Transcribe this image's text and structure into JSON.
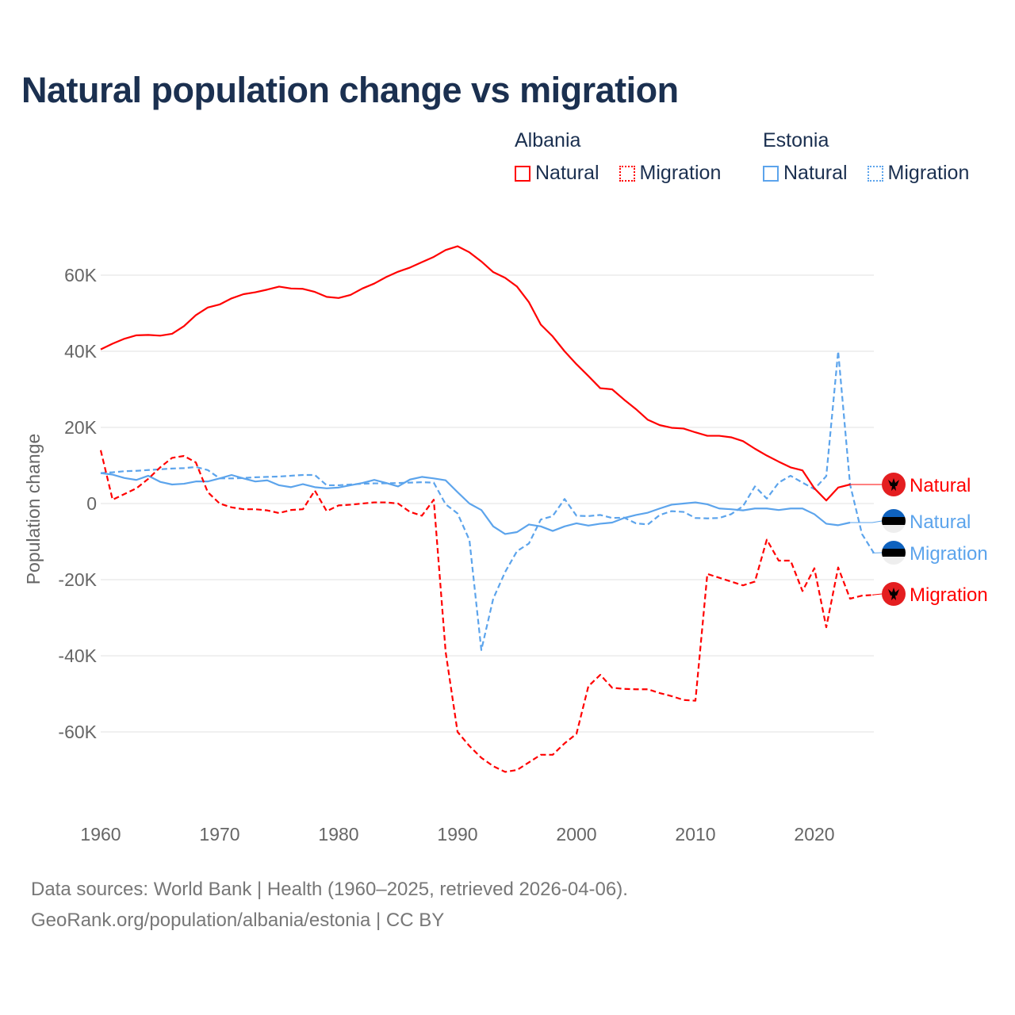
{
  "title": "Natural population change vs migration",
  "legend": {
    "groups": [
      {
        "country": "Albania",
        "items": [
          {
            "label": "Natural",
            "style": "solid"
          },
          {
            "label": "Migration",
            "style": "dotted"
          }
        ],
        "color": "#ff0000"
      },
      {
        "country": "Estonia",
        "items": [
          {
            "label": "Natural",
            "style": "solid"
          },
          {
            "label": "Migration",
            "style": "dotted"
          }
        ],
        "color": "#5ca4ec"
      }
    ]
  },
  "footer": {
    "line1": "Data sources: World Bank | Health (1960–2025, retrieved 2026-04-06).",
    "line2": "GeoRank.org/population/albania/estonia | CC BY"
  },
  "chart_data": {
    "type": "line",
    "title": "Natural population change vs migration",
    "xlabel": "",
    "ylabel": "Population change",
    "xlim": [
      1960,
      2025
    ],
    "ylim": [
      -75000,
      70000
    ],
    "grid": true,
    "legend_placement": "top-right",
    "x_ticks": [
      1960,
      1970,
      1980,
      1990,
      2000,
      2010,
      2020
    ],
    "x_tick_labels": [
      "1960",
      "1970",
      "1980",
      "1990",
      "2000",
      "2010",
      "2020"
    ],
    "y_ticks": [
      -60000,
      -40000,
      -20000,
      0,
      20000,
      40000,
      60000
    ],
    "y_tick_labels": [
      "-60K",
      "-40K",
      "-20K",
      "0",
      "20K",
      "40K",
      "60K"
    ],
    "series": [
      {
        "name": "Albania Natural",
        "end_label": "Natural",
        "color": "#ff0000",
        "dash": false,
        "start": 1960,
        "flag": "albania",
        "values": [
          40500,
          42000,
          43300,
          44200,
          44300,
          44100,
          44600,
          46600,
          49500,
          51500,
          52300,
          53900,
          55000,
          55500,
          56200,
          57000,
          56500,
          56400,
          55600,
          54300,
          54000,
          54800,
          56500,
          57800,
          59500,
          60900,
          62000,
          63400,
          64800,
          66600,
          67600,
          66000,
          63600,
          60800,
          59300,
          57000,
          52900,
          47000,
          43900,
          40000,
          36600,
          33500,
          30300,
          30000,
          27300,
          24800,
          22000,
          20600,
          19900,
          19700,
          18700,
          17800,
          17800,
          17400,
          16400,
          14400,
          12600,
          11000,
          9500,
          8700,
          4000,
          800,
          4200,
          5000
        ]
      },
      {
        "name": "Albania Migration",
        "end_label": "Migration",
        "color": "#ff0000",
        "dash": true,
        "start": 1960,
        "flag": "albania",
        "values": [
          14000,
          1000,
          2500,
          4000,
          6500,
          9500,
          12000,
          12500,
          10800,
          3000,
          0,
          -1000,
          -1500,
          -1500,
          -1800,
          -2500,
          -1700,
          -1500,
          3400,
          -2000,
          -500,
          -300,
          0,
          300,
          300,
          0,
          -2200,
          -3200,
          1000,
          -39000,
          -60000,
          -63700,
          -66800,
          -69000,
          -70500,
          -70000,
          -68000,
          -66000,
          -66000,
          -63000,
          -60500,
          -48000,
          -45000,
          -48400,
          -48700,
          -48800,
          -48800,
          -49800,
          -50600,
          -51600,
          -51800,
          -18500,
          -19500,
          -20500,
          -21500,
          -20500,
          -9500,
          -15000,
          -15000,
          -23000,
          -17000,
          -32500,
          -16800,
          -25000,
          -24200,
          -24000
        ]
      },
      {
        "name": "Estonia Natural",
        "end_label": "Natural",
        "color": "#5ca4ec",
        "dash": false,
        "start": 1960,
        "flag": "estonia",
        "values": [
          8000,
          7600,
          6700,
          6200,
          7300,
          5700,
          5000,
          5200,
          5800,
          5800,
          6600,
          7500,
          6600,
          5800,
          6100,
          4800,
          4300,
          5100,
          4300,
          4000,
          4200,
          4800,
          5400,
          6200,
          5400,
          4500,
          6300,
          7000,
          6600,
          6100,
          3000,
          0,
          -1700,
          -6000,
          -8000,
          -7500,
          -5500,
          -6000,
          -7200,
          -6000,
          -5200,
          -5800,
          -5300,
          -5000,
          -3800,
          -3000,
          -2400,
          -1300,
          -300,
          0,
          300,
          -200,
          -1300,
          -1500,
          -1800,
          -1300,
          -1300,
          -1700,
          -1300,
          -1300,
          -2800,
          -5300,
          -5700,
          -5000
        ]
      },
      {
        "name": "Estonia Migration",
        "end_label": "Migration",
        "color": "#5ca4ec",
        "dash": true,
        "start": 1960,
        "flag": "estonia",
        "values": [
          8000,
          8200,
          8500,
          8600,
          8800,
          9000,
          9200,
          9300,
          9600,
          8800,
          6600,
          6600,
          6700,
          6900,
          7000,
          7100,
          7300,
          7500,
          7500,
          4800,
          4800,
          5000,
          5200,
          5300,
          5300,
          5400,
          5500,
          5600,
          5500,
          -200,
          -2600,
          -9600,
          -38500,
          -25000,
          -18000,
          -12500,
          -10500,
          -4200,
          -3300,
          1200,
          -3200,
          -3300,
          -3000,
          -3800,
          -3700,
          -5200,
          -5500,
          -3000,
          -2000,
          -2200,
          -3800,
          -3900,
          -3800,
          -2800,
          -700,
          4500,
          1300,
          5500,
          7300,
          5500,
          3800,
          7200,
          40000,
          5000,
          -8000,
          -13000
        ]
      }
    ]
  }
}
